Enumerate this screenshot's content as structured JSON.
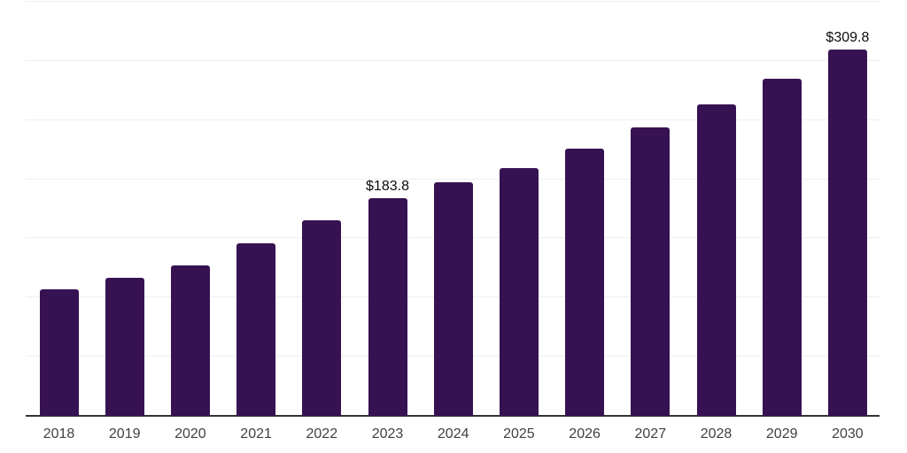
{
  "chart_data": {
    "type": "bar",
    "title": "",
    "categories": [
      "2018",
      "2019",
      "2020",
      "2021",
      "2022",
      "2023",
      "2024",
      "2025",
      "2026",
      "2027",
      "2028",
      "2029",
      "2030"
    ],
    "values": [
      107.3,
      116.8,
      127.3,
      145.5,
      165.5,
      183.8,
      197.6,
      209.6,
      225.9,
      243.8,
      263.3,
      285.2,
      309.8
    ],
    "bar_labels": [
      "",
      "",
      "",
      "",
      "",
      "$183.8",
      "",
      "",
      "",
      "",
      "",
      "",
      "$309.8"
    ],
    "xlabel": "",
    "ylabel": "",
    "ylim": [
      0,
      350
    ],
    "grid_step": 50,
    "grid": "horizontal-only",
    "y_tick_labels_visible": false,
    "legend": "none",
    "background": "#ffffff",
    "bar_color": "#371252",
    "gridline_color": "#efefef",
    "axis_line_color": "#333333",
    "tick_label_color": "#414141",
    "data_label_color": "#0d0d0d"
  }
}
